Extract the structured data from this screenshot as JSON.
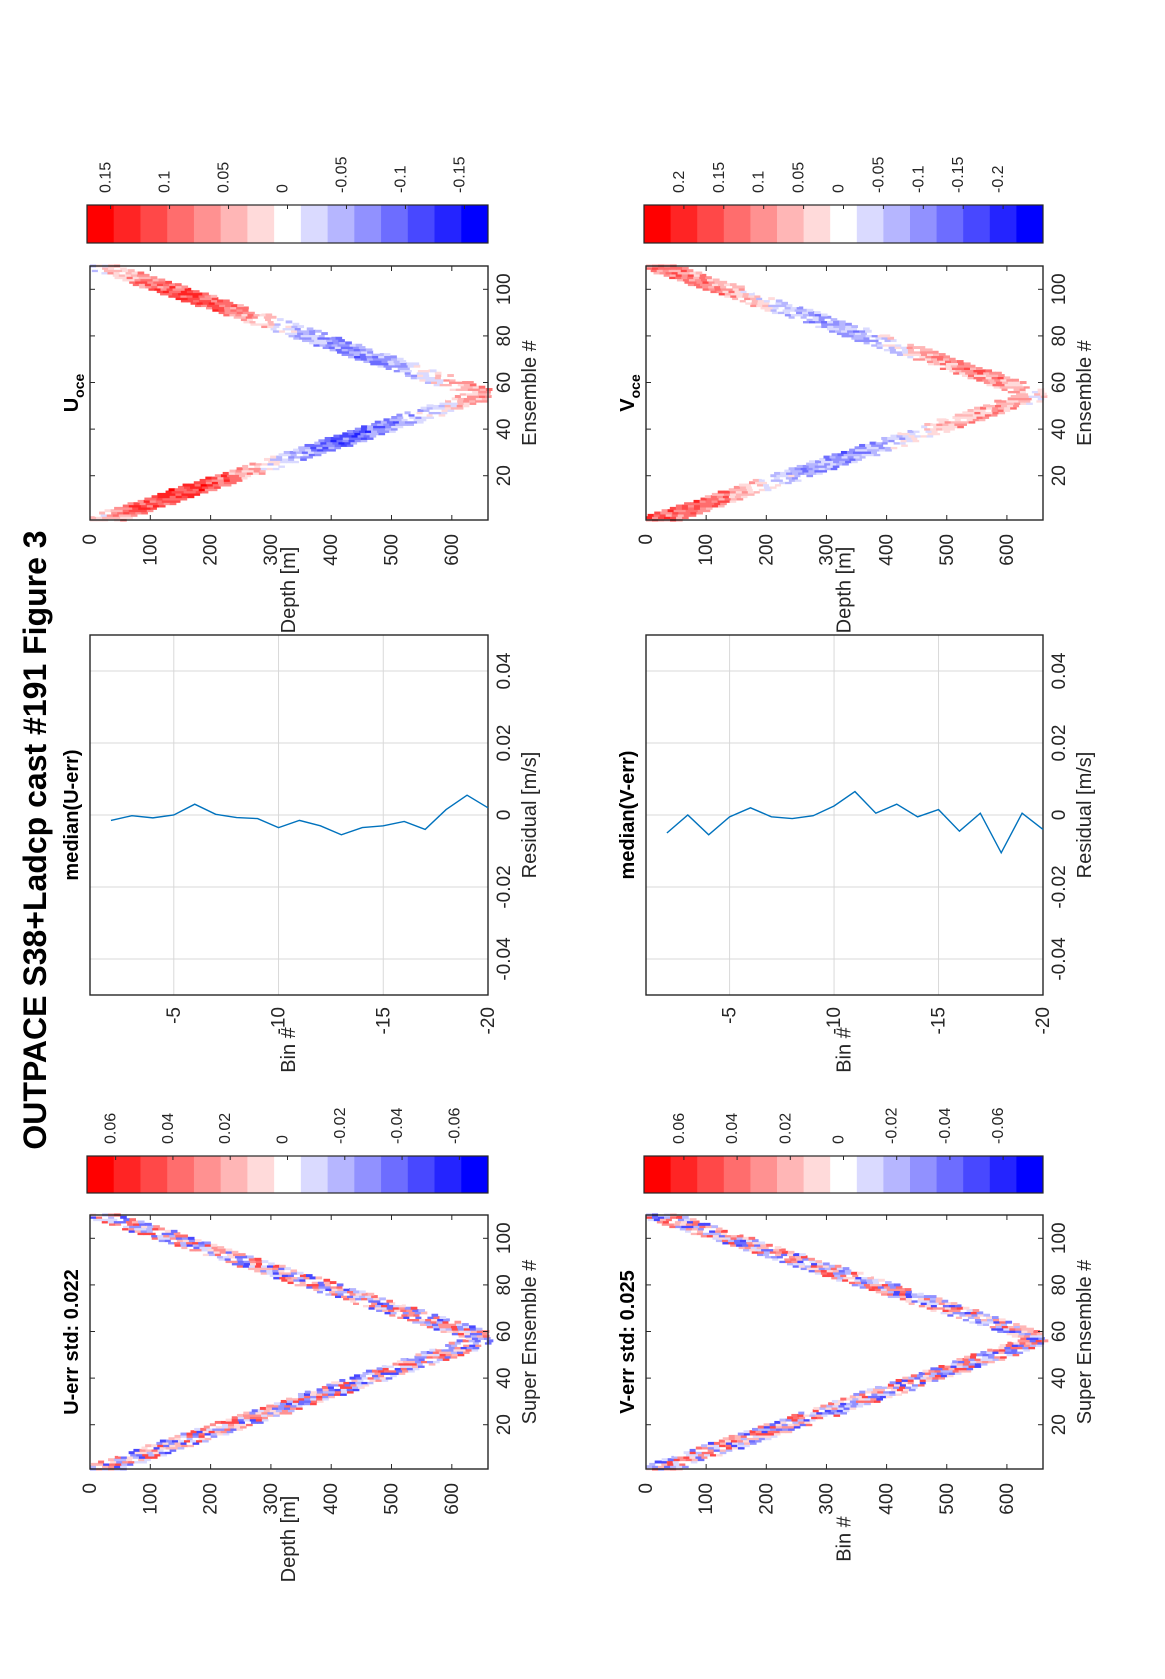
{
  "figure": {
    "title": "OUTPACE S38+Ladcp cast #191  Figure 3"
  },
  "chart_data": [
    {
      "id": "u_err",
      "type": "heatmap",
      "title": "U-err std: 0.022",
      "xlabel": "Super Ensemble #",
      "ylabel": "Depth [m]",
      "xlim": [
        1,
        110
      ],
      "ylim": [
        0,
        660
      ],
      "x_ticks": [
        "20",
        "40",
        "60",
        "80",
        "100"
      ],
      "y_ticks": [
        "0",
        "100",
        "200",
        "300",
        "400",
        "500",
        "600"
      ],
      "turn_ensemble": 57,
      "max_depth": 655,
      "colorbar": {
        "min": -0.07,
        "max": 0.07,
        "ticks": [
          "0.06",
          "0.04",
          "0.02",
          "0",
          "-0.02",
          "-0.04",
          "-0.06"
        ]
      },
      "colormap": [
        "#ff0000",
        "#ff2424",
        "#ff4848",
        "#ff6d6d",
        "#ff9191",
        "#ffb6b6",
        "#ffdada",
        "#ffffff",
        "#dadaff",
        "#b6b6ff",
        "#9191ff",
        "#6d6dff",
        "#4848ff",
        "#2424ff",
        "#0000ff"
      ]
    },
    {
      "id": "u_median",
      "type": "line",
      "title": "median(U-err)",
      "xlabel": "Residual [m/s]",
      "ylabel": "Bin #",
      "xlim": [
        -0.05,
        0.05
      ],
      "ylim": [
        -1,
        -20
      ],
      "x_ticks": [
        "-0.04",
        "-0.02",
        "0",
        "0.02",
        "0.04"
      ],
      "y_ticks": [
        "-5",
        "-10",
        "-15",
        "-20"
      ],
      "series": [
        {
          "x": [
            -0.0015,
            -0.0002,
            -0.0008,
            0.0,
            0.003,
            0.0002,
            -0.0007,
            -0.001,
            -0.0035,
            -0.0015,
            -0.003,
            -0.0055,
            -0.0035,
            -0.003,
            -0.0018,
            -0.004,
            0.0015,
            0.0055,
            0.002
          ],
          "bins": [
            -2,
            -3,
            -4,
            -5,
            -6,
            -7,
            -8,
            -9,
            -10,
            -11,
            -12,
            -13,
            -14,
            -15,
            -16,
            -17,
            -18,
            -19,
            -20
          ]
        }
      ],
      "line_color": "#0072bd"
    },
    {
      "id": "u_oce",
      "type": "heatmap",
      "title": "U",
      "title_subscript": "oce",
      "xlabel": "Ensemble #",
      "ylabel": "Depth [m]",
      "xlim": [
        1,
        110
      ],
      "ylim": [
        0,
        660
      ],
      "x_ticks": [
        "20",
        "40",
        "60",
        "80",
        "100"
      ],
      "y_ticks": [
        "0",
        "100",
        "200",
        "300",
        "400",
        "500",
        "600"
      ],
      "turn_ensemble": 55,
      "max_depth": 650,
      "colorbar": {
        "min": -0.17,
        "max": 0.17,
        "ticks": [
          "0.15",
          "0.1",
          "0.05",
          "0",
          "-0.05",
          "-0.1",
          "-0.15"
        ]
      },
      "colormap": [
        "#ff0000",
        "#ff2424",
        "#ff4848",
        "#ff6d6d",
        "#ff9191",
        "#ffb6b6",
        "#ffdada",
        "#ffffff",
        "#dadaff",
        "#b6b6ff",
        "#9191ff",
        "#6d6dff",
        "#4848ff",
        "#2424ff",
        "#0000ff"
      ]
    },
    {
      "id": "v_err",
      "type": "heatmap",
      "title": "V-err std: 0.025",
      "xlabel": "Super Ensemble #",
      "ylabel": "Bin #",
      "xlim": [
        1,
        110
      ],
      "ylim": [
        0,
        660
      ],
      "x_ticks": [
        "20",
        "40",
        "60",
        "80",
        "100"
      ],
      "y_ticks": [
        "0",
        "100",
        "200",
        "300",
        "400",
        "500",
        "600"
      ],
      "turn_ensemble": 57,
      "max_depth": 655,
      "colorbar": {
        "min": -0.075,
        "max": 0.075,
        "ticks": [
          "0.06",
          "0.04",
          "0.02",
          "0",
          "-0.02",
          "-0.04",
          "-0.06"
        ]
      },
      "colormap": [
        "#ff0000",
        "#ff2424",
        "#ff4848",
        "#ff6d6d",
        "#ff9191",
        "#ffb6b6",
        "#ffdada",
        "#ffffff",
        "#dadaff",
        "#b6b6ff",
        "#9191ff",
        "#6d6dff",
        "#4848ff",
        "#2424ff",
        "#0000ff"
      ]
    },
    {
      "id": "v_median",
      "type": "line",
      "title": "median(V-err)",
      "xlabel": "Residual [m/s]",
      "ylabel": "Bin #",
      "xlim": [
        -0.05,
        0.05
      ],
      "ylim": [
        -1,
        -20
      ],
      "x_ticks": [
        "-0.04",
        "-0.02",
        "0",
        "0.02",
        "0.04"
      ],
      "y_ticks": [
        "-5",
        "-10",
        "-15",
        "-20"
      ],
      "series": [
        {
          "x": [
            -0.005,
            0.0,
            -0.0055,
            -0.0005,
            0.002,
            -0.0005,
            -0.001,
            -0.0002,
            0.0025,
            0.0065,
            0.0005,
            0.003,
            -0.0005,
            0.0015,
            -0.0045,
            0.0005,
            -0.0105,
            0.0005,
            -0.004
          ],
          "bins": [
            -2,
            -3,
            -4,
            -5,
            -6,
            -7,
            -8,
            -9,
            -10,
            -11,
            -12,
            -13,
            -14,
            -15,
            -16,
            -17,
            -18,
            -19,
            -20
          ]
        }
      ],
      "line_color": "#0072bd"
    },
    {
      "id": "v_oce",
      "type": "heatmap",
      "title": "V",
      "title_subscript": "oce",
      "xlabel": "Ensemble #",
      "ylabel": "Depth [m]",
      "xlim": [
        1,
        110
      ],
      "ylim": [
        0,
        660
      ],
      "x_ticks": [
        "20",
        "40",
        "60",
        "80",
        "100"
      ],
      "y_ticks": [
        "0",
        "100",
        "200",
        "300",
        "400",
        "500",
        "600"
      ],
      "turn_ensemble": 55,
      "max_depth": 650,
      "colorbar": {
        "min": -0.25,
        "max": 0.25,
        "ticks": [
          "0.2",
          "0.15",
          "0.1",
          "0.05",
          "0",
          "-0.05",
          "-0.1",
          "-0.15",
          "-0.2"
        ]
      },
      "colormap": [
        "#ff0000",
        "#ff2424",
        "#ff4848",
        "#ff6d6d",
        "#ff9191",
        "#ffb6b6",
        "#ffdada",
        "#ffffff",
        "#dadaff",
        "#b6b6ff",
        "#9191ff",
        "#6d6dff",
        "#4848ff",
        "#2424ff",
        "#0000ff"
      ]
    }
  ]
}
